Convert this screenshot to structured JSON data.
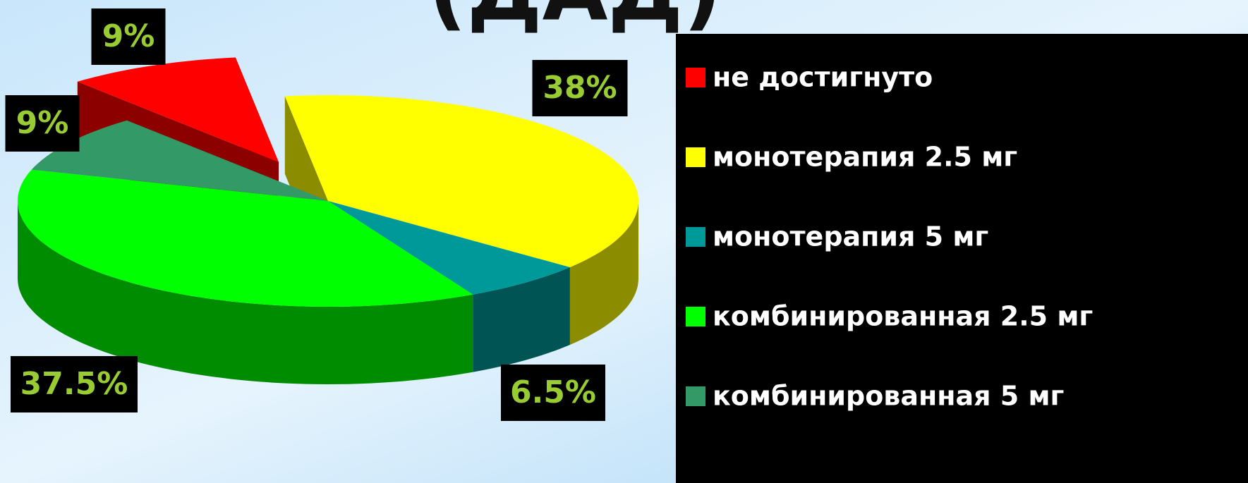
{
  "chart_data": {
    "type": "pie3d",
    "title": "(ДАД)",
    "categories": [
      "не достигнуто",
      "монотерапия 2.5 мг",
      "монотерапия 5 мг",
      "комбинированная 2.5 мг",
      "комбинированная 5 мг"
    ],
    "series": [
      {
        "name": "ДАД",
        "values": [
          9,
          38,
          6.5,
          37.5,
          9
        ],
        "value_labels": [
          "9%",
          "38%",
          "6.5%",
          "37.5%",
          "9%"
        ]
      }
    ],
    "colors": [
      "#ff0000",
      "#ffff00",
      "#009999",
      "#00ff00",
      "#339966"
    ],
    "legend": "right"
  }
}
